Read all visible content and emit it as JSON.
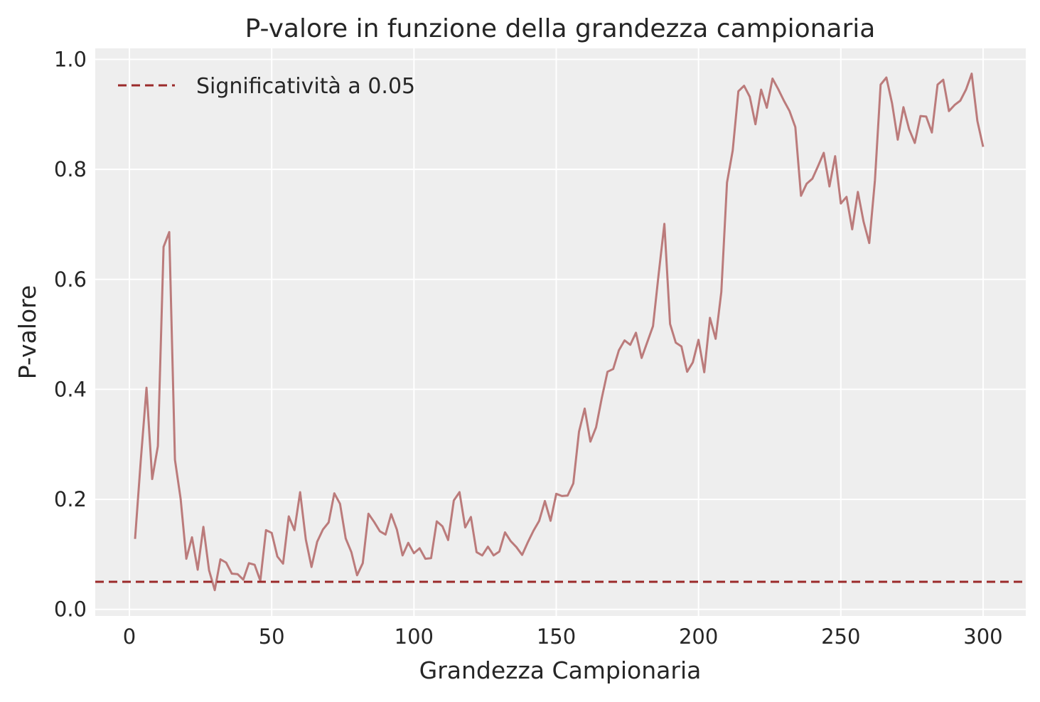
{
  "chart_data": {
    "type": "line",
    "title": "P-valore in funzione della grandezza campionaria",
    "xlabel": "Grandezza Campionaria",
    "ylabel": "P-valore",
    "xlim": [
      -12,
      315
    ],
    "ylim": [
      -0.012,
      1.02
    ],
    "xticks": [
      0,
      50,
      100,
      150,
      200,
      250,
      300
    ],
    "yticks": [
      0.0,
      0.2,
      0.4,
      0.6,
      0.8,
      1.0
    ],
    "xtick_labels": [
      "0",
      "50",
      "100",
      "150",
      "200",
      "250",
      "300"
    ],
    "ytick_labels": [
      "0.0",
      "0.2",
      "0.4",
      "0.6",
      "0.8",
      "1.0"
    ],
    "grid": true,
    "legend_position": "top-left",
    "colors": {
      "series": "#bb7b7b",
      "threshold": "#9b2a2a",
      "plot_background": "#eeeeee",
      "grid": "#ffffff"
    },
    "threshold": {
      "name": "Significatività a 0.05",
      "value": 0.05
    },
    "series": [
      {
        "x": [
          2,
          4,
          6,
          8,
          10,
          12,
          14,
          16,
          18,
          20,
          22,
          24,
          26,
          28,
          30,
          32,
          34,
          36,
          38,
          40,
          42,
          44,
          46,
          48,
          50,
          52,
          54,
          56,
          58,
          60,
          62,
          64,
          66,
          68,
          70,
          72,
          74,
          76,
          78,
          80,
          82,
          84,
          86,
          88,
          90,
          92,
          94,
          96,
          98,
          100,
          102,
          104,
          106,
          108,
          110,
          112,
          114,
          116,
          118,
          120,
          122,
          124,
          126,
          128,
          130,
          132,
          134,
          136,
          138,
          140,
          142,
          144,
          146,
          148,
          150,
          152,
          154,
          156,
          158,
          160,
          162,
          164,
          166,
          168,
          170,
          172,
          174,
          176,
          178,
          180,
          182,
          184,
          186,
          188,
          190,
          192,
          194,
          196,
          198,
          200,
          202,
          204,
          206,
          208,
          210,
          212,
          214,
          216,
          218,
          220,
          222,
          224,
          226,
          228,
          230,
          232,
          234,
          236,
          238,
          240,
          242,
          244,
          246,
          248,
          250,
          252,
          254,
          256,
          258,
          260,
          262,
          264,
          266,
          268,
          270,
          272,
          274,
          276,
          278,
          280,
          282,
          284,
          286,
          288,
          290,
          292,
          294,
          296,
          298,
          300
        ],
        "y": [
          0.128,
          0.27,
          0.403,
          0.237,
          0.297,
          0.659,
          0.686,
          0.272,
          0.201,
          0.092,
          0.131,
          0.072,
          0.15,
          0.071,
          0.035,
          0.091,
          0.085,
          0.065,
          0.064,
          0.054,
          0.084,
          0.081,
          0.052,
          0.144,
          0.139,
          0.096,
          0.083,
          0.169,
          0.144,
          0.213,
          0.127,
          0.077,
          0.123,
          0.145,
          0.158,
          0.211,
          0.192,
          0.129,
          0.104,
          0.062,
          0.084,
          0.174,
          0.159,
          0.142,
          0.136,
          0.173,
          0.145,
          0.098,
          0.121,
          0.102,
          0.111,
          0.092,
          0.093,
          0.16,
          0.151,
          0.126,
          0.198,
          0.213,
          0.149,
          0.168,
          0.104,
          0.098,
          0.114,
          0.098,
          0.105,
          0.14,
          0.124,
          0.113,
          0.099,
          0.122,
          0.143,
          0.161,
          0.197,
          0.161,
          0.21,
          0.206,
          0.207,
          0.229,
          0.323,
          0.365,
          0.305,
          0.331,
          0.384,
          0.432,
          0.437,
          0.471,
          0.489,
          0.481,
          0.503,
          0.457,
          0.486,
          0.515,
          0.61,
          0.701,
          0.519,
          0.485,
          0.478,
          0.432,
          0.449,
          0.49,
          0.431,
          0.53,
          0.492,
          0.577,
          0.776,
          0.834,
          0.942,
          0.952,
          0.932,
          0.882,
          0.945,
          0.912,
          0.965,
          0.946,
          0.925,
          0.906,
          0.877,
          0.752,
          0.774,
          0.783,
          0.806,
          0.83,
          0.769,
          0.824,
          0.738,
          0.75,
          0.691,
          0.759,
          0.705,
          0.666,
          0.78,
          0.954,
          0.967,
          0.92,
          0.854,
          0.913,
          0.873,
          0.848,
          0.897,
          0.896,
          0.867,
          0.954,
          0.963,
          0.906,
          0.917,
          0.925,
          0.945,
          0.974,
          0.888,
          0.841
        ]
      }
    ]
  }
}
